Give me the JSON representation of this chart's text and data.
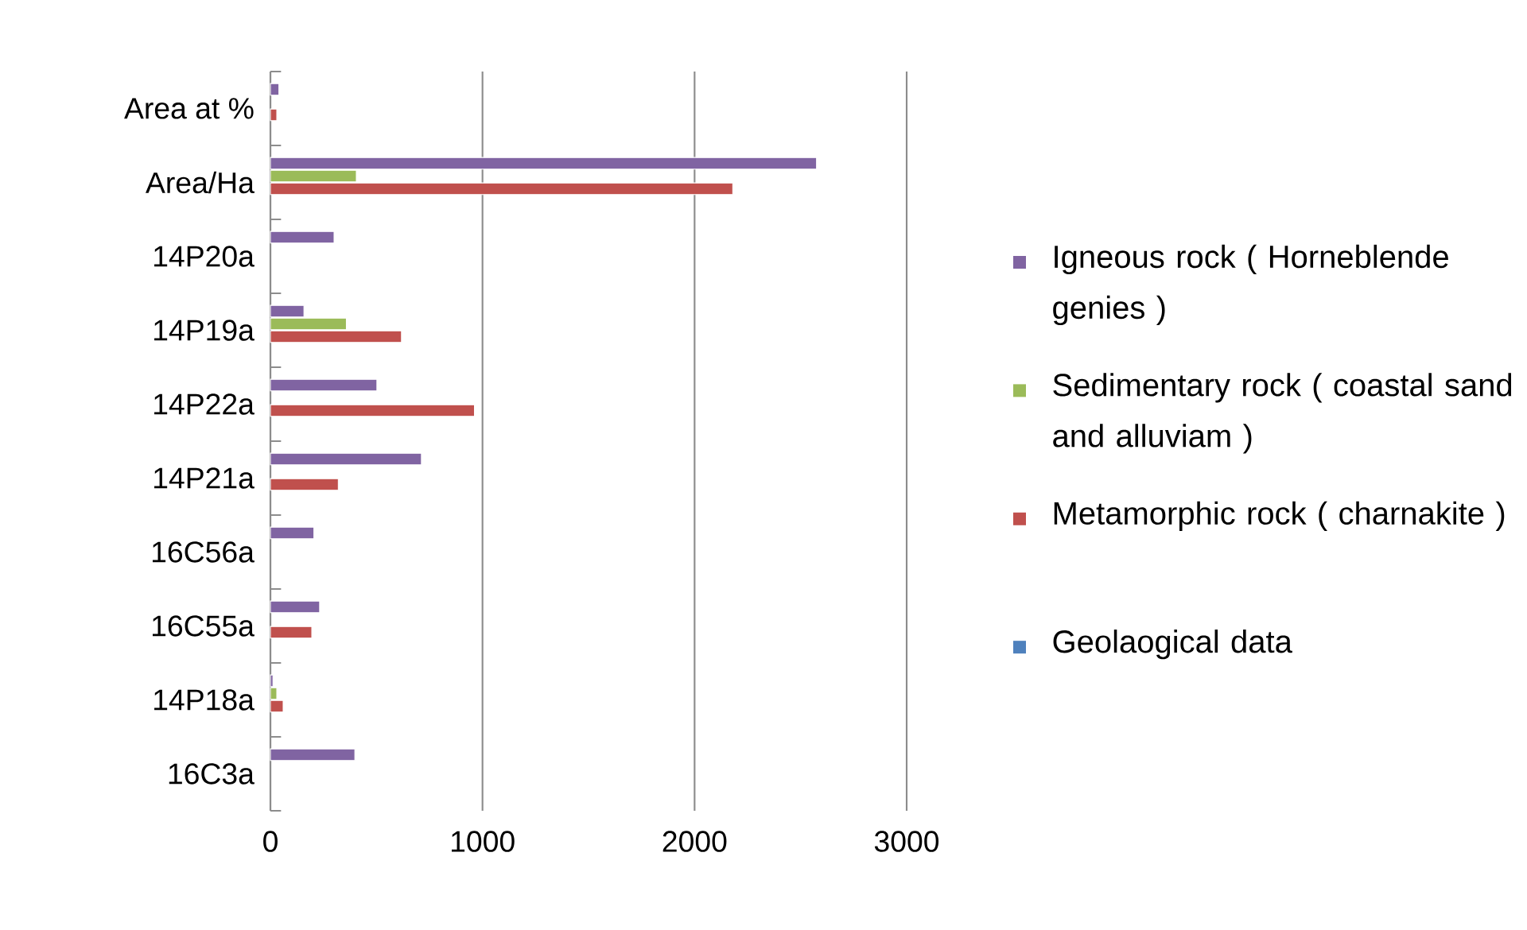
{
  "chart_data": {
    "type": "bar",
    "orientation": "horizontal",
    "categories": [
      "Area at %",
      "Area/Ha",
      "14P20a",
      "14P19a",
      "14P22a",
      "14P21a",
      "16C56a",
      "16C55a",
      "14P18a",
      "16C3a"
    ],
    "series": [
      {
        "name": "Igneous rock ( Horneblende genies )",
        "color": "#8064a2",
        "values": [
          40,
          2575,
          300,
          158,
          502,
          712,
          205,
          232,
          12,
          398
        ]
      },
      {
        "name": "Sedimentary rock ( coastal sand and alluviam )",
        "color": "#9bbb59",
        "values": [
          null,
          405,
          null,
          358,
          null,
          null,
          null,
          null,
          30,
          null
        ]
      },
      {
        "name": "Metamorphic rock  ( charnakite )",
        "color": "#c0504d",
        "values": [
          30,
          2180,
          null,
          618,
          962,
          320,
          null,
          195,
          60,
          null
        ]
      },
      {
        "name": "Geolaogical data",
        "color": "#4f81bd",
        "values": [
          null,
          null,
          null,
          null,
          null,
          null,
          null,
          null,
          null,
          null
        ]
      }
    ],
    "xlim": [
      0,
      3000
    ],
    "xticks": [
      0,
      1000,
      2000,
      3000
    ],
    "grid": "x",
    "legend": "right"
  }
}
